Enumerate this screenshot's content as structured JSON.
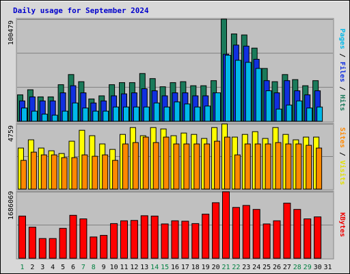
{
  "chart_data": {
    "type": "bar",
    "title": "Daily usage for September 2024",
    "categories": [
      "1",
      "2",
      "3",
      "4",
      "5",
      "6",
      "7",
      "8",
      "9",
      "10",
      "11",
      "12",
      "13",
      "14",
      "15",
      "16",
      "17",
      "18",
      "19",
      "20",
      "21",
      "22",
      "23",
      "24",
      "25",
      "26",
      "27",
      "28",
      "29",
      "30",
      "31"
    ],
    "weekend_days": [
      "1",
      "7",
      "8",
      "14",
      "15",
      "21",
      "22",
      "28",
      "29"
    ],
    "panels": [
      {
        "id": "top",
        "max_label": "100479",
        "ylim": [
          0,
          100479
        ],
        "side_labels": [
          {
            "text": "Pages",
            "color": "#00b8e8"
          },
          {
            "text": " / ",
            "color": "#000000"
          },
          {
            "text": "Files",
            "color": "#1030e0"
          },
          {
            "text": " / ",
            "color": "#000000"
          },
          {
            "text": "Hits",
            "color": "#1a7a5a"
          }
        ],
        "series": [
          {
            "name": "Hits",
            "color": "#1a7a5a",
            "values": [
              26000,
              31000,
              24000,
              24000,
              36000,
              46000,
              39000,
              22000,
              25000,
              36000,
              38000,
              38000,
              47000,
              42000,
              34000,
              38000,
              39000,
              35000,
              35000,
              40000,
              100479,
              86000,
              85000,
              72000,
              52000,
              39000,
              46000,
              41000,
              35000,
              40000,
              0
            ]
          },
          {
            "name": "Files",
            "color": "#1030e0",
            "values": [
              20000,
              24000,
              20000,
              20000,
              28000,
              35000,
              28000,
              18000,
              20000,
              25000,
              27000,
              28000,
              32000,
              30000,
              25000,
              28000,
              28000,
              25000,
              25000,
              28000,
              66000,
              75000,
              74000,
              61000,
              40000,
              28000,
              40000,
              30000,
              26000,
              30000,
              0
            ]
          },
          {
            "name": "Pages",
            "color": "#00b8e8",
            "values": [
              13000,
              10000,
              7000,
              6000,
              10000,
              18000,
              13000,
              10000,
              10000,
              14000,
              14000,
              14000,
              14000,
              18000,
              14000,
              19000,
              17000,
              14000,
              15000,
              28000,
              65000,
              60000,
              58000,
              52000,
              30000,
              12000,
              16000,
              20000,
              13000,
              14000,
              0
            ]
          }
        ]
      },
      {
        "id": "middle",
        "max_label": "4759",
        "ylim": [
          0,
          4759
        ],
        "side_labels": [
          {
            "text": "Sites",
            "color": "#ff8800"
          },
          {
            "text": " / ",
            "color": "#000000"
          },
          {
            "text": "Visits",
            "color": "#e0e000"
          }
        ],
        "series": [
          {
            "name": "Visits",
            "color": "#ffff00",
            "values": [
              3000,
              3600,
              3000,
              2800,
              2600,
              3500,
              4300,
              3900,
              3300,
              2900,
              4000,
              4500,
              3900,
              4500,
              4400,
              3900,
              4100,
              4000,
              3700,
              4500,
              4759,
              3800,
              4000,
              4200,
              3700,
              4500,
              4000,
              3600,
              3800,
              3800,
              0
            ]
          },
          {
            "name": "Sites",
            "color": "#ff8800",
            "values": [
              2100,
              2700,
              2500,
              2500,
              2300,
              2300,
              2500,
              2400,
              2500,
              2100,
              3300,
              3400,
              3800,
              3400,
              3800,
              3300,
              3300,
              3300,
              3300,
              3500,
              3800,
              2500,
              3300,
              3300,
              3300,
              3400,
              3300,
              3300,
              3200,
              3000,
              0
            ]
          }
        ]
      },
      {
        "id": "bottom",
        "max_label": "1686069",
        "ylim": [
          0,
          1686069
        ],
        "side_labels": [
          {
            "text": "KBytes",
            "color": "#ee0000"
          }
        ],
        "series": [
          {
            "name": "KBytes",
            "color": "#ff0000",
            "values": [
              1070000,
              790000,
              500000,
              500000,
              760000,
              1090000,
              1000000,
              540000,
              580000,
              880000,
              950000,
              960000,
              1080000,
              1070000,
              870000,
              950000,
              940000,
              880000,
              1120000,
              1410000,
              1686069,
              1290000,
              1340000,
              1240000,
              870000,
              950000,
              1400000,
              1240000,
              1000000,
              1050000,
              0
            ]
          }
        ]
      }
    ]
  }
}
